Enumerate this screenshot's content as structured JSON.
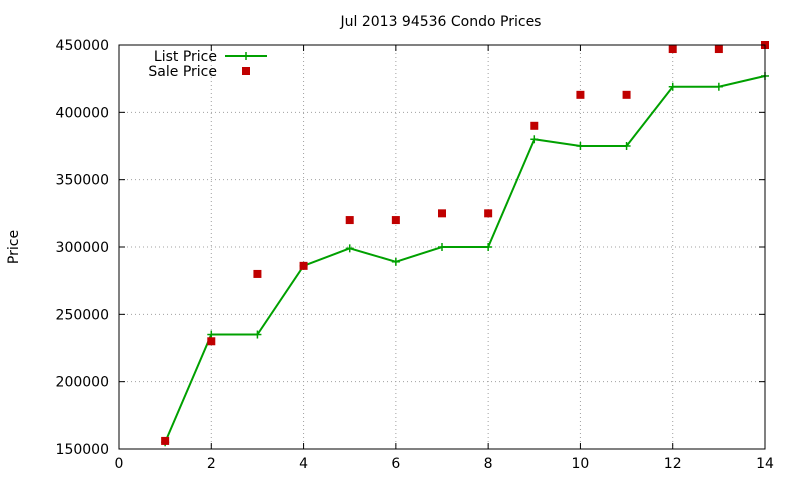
{
  "chart_data": {
    "type": "line",
    "title": "Jul 2013 94536 Condo Prices",
    "xlabel": "",
    "ylabel": "Price",
    "xlim": [
      0,
      14
    ],
    "ylim": [
      150000,
      450000
    ],
    "xticks": [
      0,
      2,
      4,
      6,
      8,
      10,
      12,
      14
    ],
    "yticks": [
      150000,
      200000,
      250000,
      300000,
      350000,
      400000,
      450000
    ],
    "grid": true,
    "legend_position": "top-left",
    "series": [
      {
        "name": "List Price",
        "style": "line-points",
        "color": "#00a000",
        "x": [
          1,
          2,
          3,
          4,
          5,
          6,
          7,
          8,
          9,
          10,
          11,
          12,
          13,
          14
        ],
        "y": [
          155000,
          235000,
          235000,
          286000,
          299000,
          289000,
          300000,
          300000,
          380000,
          375000,
          375000,
          419000,
          419000,
          427000
        ]
      },
      {
        "name": "Sale Price",
        "style": "points",
        "color": "#c00000",
        "x": [
          1,
          2,
          3,
          4,
          5,
          6,
          7,
          8,
          9,
          10,
          11,
          12,
          13,
          14
        ],
        "y": [
          156000,
          230000,
          280000,
          286000,
          320000,
          320000,
          325000,
          325000,
          390000,
          413000,
          413000,
          447000,
          447000,
          450000
        ]
      }
    ]
  }
}
